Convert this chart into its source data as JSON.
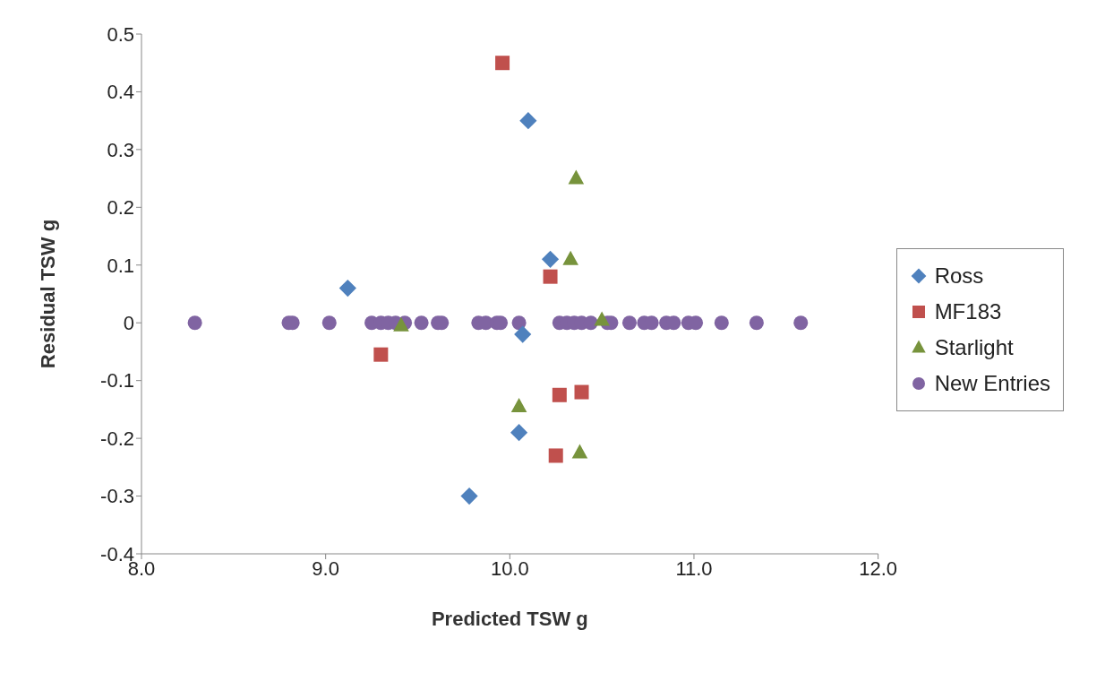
{
  "chart_data": {
    "type": "scatter",
    "xlabel": "Predicted TSW g",
    "ylabel": "Residual TSW g",
    "xlim": [
      8.0,
      12.0
    ],
    "xticks": [
      {
        "value": 8,
        "label": "8.0"
      },
      {
        "value": 9,
        "label": "9.0"
      },
      {
        "value": 10,
        "label": "10.0"
      },
      {
        "value": 11,
        "label": "11.0"
      },
      {
        "value": 12,
        "label": "12.0"
      }
    ],
    "ylim": [
      -0.4,
      0.5
    ],
    "yticks": [
      -0.4,
      -0.3,
      -0.2,
      -0.1,
      0,
      0.1,
      0.2,
      0.3,
      0.4,
      0.5
    ],
    "grid": false,
    "legend": "right",
    "series": [
      {
        "name": "Ross",
        "color": "#4f81bd",
        "marker": "diamond",
        "x": [
          9.12,
          10.1,
          10.22,
          10.07,
          10.05,
          9.78
        ],
        "values": [
          0.06,
          0.35,
          0.11,
          -0.02,
          -0.19,
          -0.3
        ]
      },
      {
        "name": "MF183",
        "color": "#c0504d",
        "marker": "square",
        "x": [
          9.96,
          10.22,
          9.3,
          10.27,
          10.39,
          10.25
        ],
        "values": [
          0.45,
          0.08,
          -0.055,
          -0.125,
          -0.12,
          -0.23
        ]
      },
      {
        "name": "Starlight",
        "color": "#77933c",
        "marker": "triangle",
        "x": [
          10.36,
          10.33,
          10.5,
          9.41,
          10.05,
          10.38
        ],
        "values": [
          0.25,
          0.11,
          0.005,
          -0.005,
          -0.145,
          -0.225
        ]
      },
      {
        "name": "New Entries",
        "color": "#8064a2",
        "marker": "circle",
        "x": [
          8.29,
          8.8,
          8.82,
          9.02,
          9.25,
          9.3,
          9.34,
          9.38,
          9.43,
          9.52,
          9.61,
          9.63,
          9.83,
          9.87,
          9.93,
          9.95,
          10.05,
          10.27,
          10.31,
          10.35,
          10.39,
          10.44,
          10.53,
          10.55,
          10.65,
          10.73,
          10.77,
          10.85,
          10.89,
          10.97,
          11.01,
          11.15,
          11.34,
          11.58
        ],
        "values": [
          0,
          0,
          0,
          0,
          0,
          0,
          0,
          0,
          0,
          0,
          0,
          0,
          0,
          0,
          0,
          0,
          0,
          0,
          0,
          0,
          0,
          0,
          0,
          0,
          0,
          0,
          0,
          0,
          0,
          0,
          0,
          0,
          0,
          0
        ]
      }
    ]
  }
}
